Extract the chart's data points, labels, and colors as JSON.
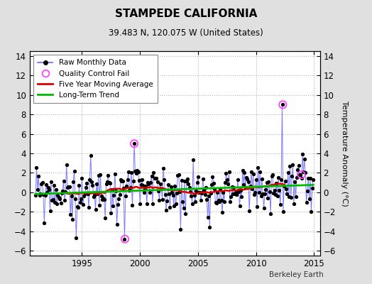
{
  "title": "STAMPEDE CALIFORNIA",
  "subtitle": "39.483 N, 120.075 W (United States)",
  "ylabel": "Temperature Anomaly (°C)",
  "credit": "Berkeley Earth",
  "xlim": [
    1990.5,
    2015.5
  ],
  "ylim": [
    -6.5,
    14.5
  ],
  "yticks": [
    -6,
    -4,
    -2,
    0,
    2,
    4,
    6,
    8,
    10,
    12,
    14
  ],
  "xticks": [
    1995,
    2000,
    2005,
    2010,
    2015
  ],
  "bg_color": "#e0e0e0",
  "plot_bg_color": "#ffffff",
  "raw_line_color": "#6666ff",
  "raw_marker_color": "#000000",
  "qc_fail_color": "#ff44ff",
  "moving_avg_color": "#dd0000",
  "trend_color": "#00bb00",
  "seed": 99,
  "start_year": 1991.0,
  "end_year": 2014.92
}
